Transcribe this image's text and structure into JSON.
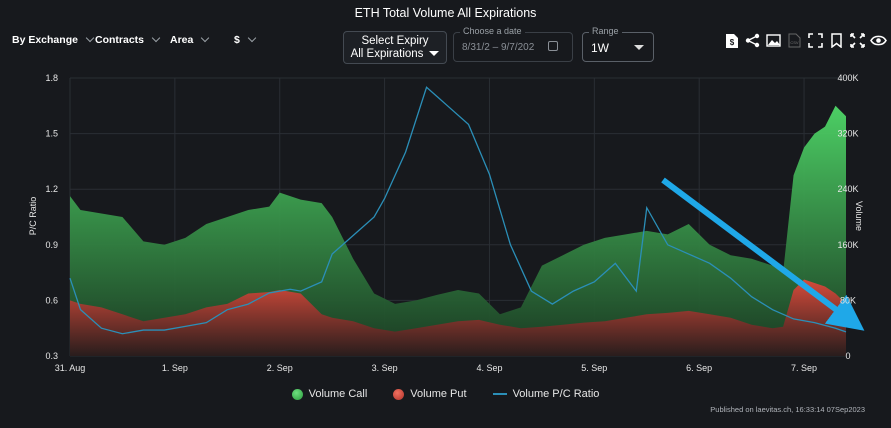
{
  "title": "ETH Total Volume All Expirations",
  "filters": [
    {
      "label": "By Exchange"
    },
    {
      "label": "Contracts"
    },
    {
      "label": "Area"
    },
    {
      "label": "$"
    }
  ],
  "expiry": {
    "label": "Select Expiry",
    "value": "All Expirations"
  },
  "date_range": {
    "legend": "Choose a date",
    "start": "8/31/2",
    "separator": "–",
    "end": "9/7/202"
  },
  "range": {
    "legend": "Range",
    "value": "1W"
  },
  "toolbar_icons": [
    "dollar-doc-icon",
    "share-icon",
    "image-icon",
    "csv-icon",
    "fullscreen-icon",
    "bookmark-icon",
    "expand-icon",
    "eye-icon",
    "refresh-icon"
  ],
  "published": "Published on laevitas.ch, 16:33:14 07Sep2023",
  "colors": {
    "call": "#3fc95a",
    "put": "#e0473a",
    "ratio": "#2b8fb8",
    "arrow": "#1fa8e8"
  },
  "chart_data": {
    "type": "area",
    "x_ticks": [
      "31. Aug",
      "1. Sep",
      "2. Sep",
      "3. Sep",
      "4. Sep",
      "5. Sep",
      "6. Sep",
      "7. Sep"
    ],
    "x_range": [
      0,
      7.4
    ],
    "y_left": {
      "label": "P/C Ratio",
      "ticks": [
        "0.3",
        "0.6",
        "0.9",
        "1.2",
        "1.5",
        "1.8"
      ],
      "range": [
        0.3,
        1.8
      ]
    },
    "y_right": {
      "label": "Volume",
      "ticks": [
        "0",
        "80K",
        "160K",
        "240K",
        "320K",
        "400K"
      ],
      "range": [
        0,
        400000
      ]
    },
    "series": [
      {
        "name": "Volume Call",
        "axis": "right",
        "x": [
          0,
          0.1,
          0.3,
          0.5,
          0.7,
          0.9,
          1.1,
          1.3,
          1.5,
          1.7,
          1.9,
          2.0,
          2.2,
          2.4,
          2.5,
          2.7,
          2.9,
          3.1,
          3.3,
          3.5,
          3.7,
          3.9,
          4.1,
          4.3,
          4.5,
          4.7,
          4.9,
          5.1,
          5.3,
          5.5,
          5.7,
          5.9,
          6.1,
          6.3,
          6.5,
          6.7,
          6.8,
          6.9,
          7.0,
          7.1,
          7.2,
          7.3,
          7.4
        ],
        "values": [
          230000,
          210000,
          205000,
          200000,
          165000,
          160000,
          170000,
          190000,
          200000,
          210000,
          215000,
          235000,
          225000,
          220000,
          200000,
          140000,
          90000,
          75000,
          80000,
          88000,
          95000,
          90000,
          60000,
          70000,
          130000,
          145000,
          160000,
          170000,
          175000,
          180000,
          175000,
          190000,
          160000,
          145000,
          140000,
          130000,
          120000,
          260000,
          300000,
          320000,
          330000,
          360000,
          345000
        ]
      },
      {
        "name": "Volume Put",
        "axis": "right",
        "x": [
          0,
          0.1,
          0.3,
          0.5,
          0.7,
          0.9,
          1.1,
          1.3,
          1.5,
          1.7,
          1.9,
          2.0,
          2.2,
          2.4,
          2.5,
          2.7,
          2.9,
          3.1,
          3.3,
          3.5,
          3.7,
          3.9,
          4.1,
          4.3,
          4.5,
          4.7,
          4.9,
          5.1,
          5.3,
          5.5,
          5.7,
          5.9,
          6.1,
          6.3,
          6.5,
          6.7,
          6.8,
          6.9,
          7.0,
          7.1,
          7.2,
          7.3,
          7.4
        ],
        "values": [
          80000,
          75000,
          70000,
          60000,
          50000,
          55000,
          60000,
          70000,
          75000,
          90000,
          92000,
          95000,
          90000,
          60000,
          55000,
          50000,
          40000,
          35000,
          40000,
          45000,
          50000,
          52000,
          45000,
          40000,
          42000,
          45000,
          48000,
          50000,
          55000,
          60000,
          62000,
          65000,
          60000,
          55000,
          45000,
          40000,
          42000,
          95000,
          110000,
          105000,
          100000,
          90000,
          75000
        ]
      },
      {
        "name": "Volume P/C Ratio",
        "axis": "left",
        "x": [
          0,
          0.1,
          0.3,
          0.5,
          0.7,
          0.9,
          1.1,
          1.3,
          1.5,
          1.7,
          1.9,
          2.1,
          2.2,
          2.4,
          2.5,
          2.7,
          2.9,
          3.0,
          3.2,
          3.4,
          3.5,
          3.6,
          3.8,
          4.0,
          4.2,
          4.4,
          4.6,
          4.8,
          5.0,
          5.2,
          5.4,
          5.5,
          5.7,
          5.9,
          6.1,
          6.3,
          6.5,
          6.7,
          6.9,
          7.1,
          7.3,
          7.4
        ],
        "values": [
          0.72,
          0.55,
          0.45,
          0.42,
          0.44,
          0.44,
          0.46,
          0.48,
          0.55,
          0.58,
          0.64,
          0.66,
          0.65,
          0.7,
          0.85,
          0.95,
          1.05,
          1.15,
          1.4,
          1.75,
          1.7,
          1.65,
          1.55,
          1.28,
          0.9,
          0.65,
          0.58,
          0.65,
          0.7,
          0.8,
          0.65,
          1.1,
          0.9,
          0.85,
          0.8,
          0.72,
          0.62,
          0.55,
          0.5,
          0.48,
          0.45,
          0.43
        ]
      }
    ]
  }
}
